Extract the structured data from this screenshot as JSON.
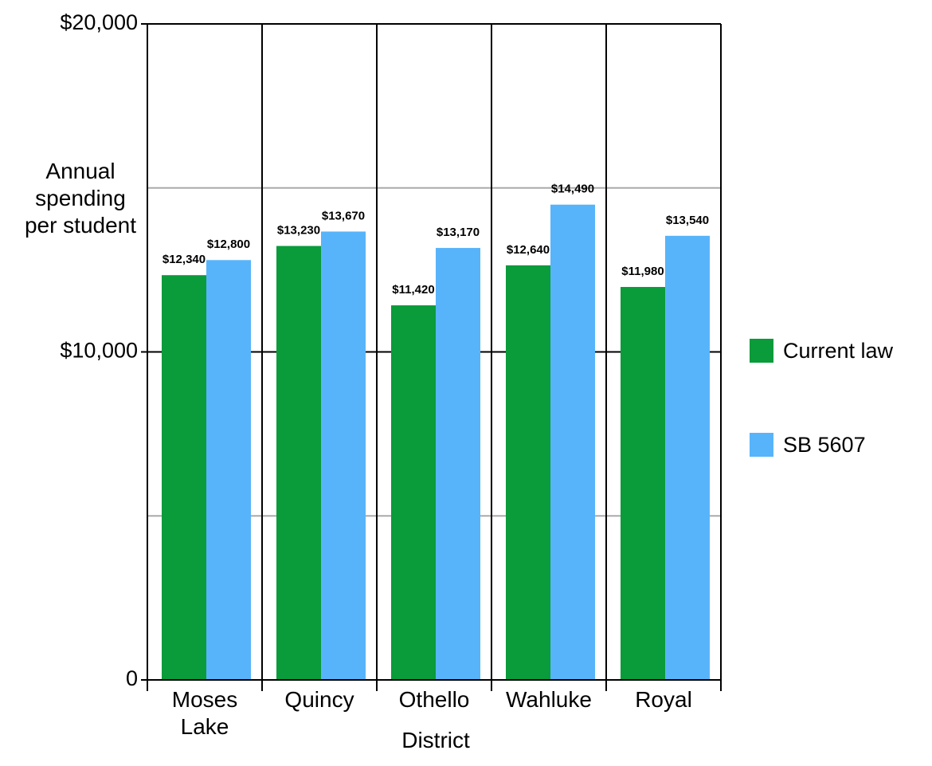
{
  "chart_data": {
    "type": "bar",
    "y_label": "Annual spending per student",
    "x_label": "District",
    "categories": [
      "Moses Lake",
      "Quincy",
      "Othello",
      "Wahluke",
      "Royal"
    ],
    "series": [
      {
        "name": "Current law",
        "color": "#0a9b3a",
        "values": [
          12340,
          13230,
          11420,
          12640,
          11980
        ],
        "value_labels": [
          "$12,340",
          "$13,230",
          "$11,420",
          "$12,640",
          "$11,980"
        ]
      },
      {
        "name": "SB 5607",
        "color": "#58b4fa",
        "values": [
          12800,
          13670,
          13170,
          14490,
          13540
        ],
        "value_labels": [
          "$12,800",
          "$13,670",
          "$13,170",
          "$14,490",
          "$13,540"
        ]
      }
    ],
    "ylim": [
      0,
      20000
    ],
    "yticks": [
      0,
      {
        "value": 5000,
        "label": null
      },
      {
        "value": 10000,
        "label": "$10,000"
      },
      {
        "value": 15000,
        "label": null
      },
      {
        "value": 20000,
        "label": "$20,000"
      }
    ],
    "grid": true,
    "legend": "right"
  }
}
